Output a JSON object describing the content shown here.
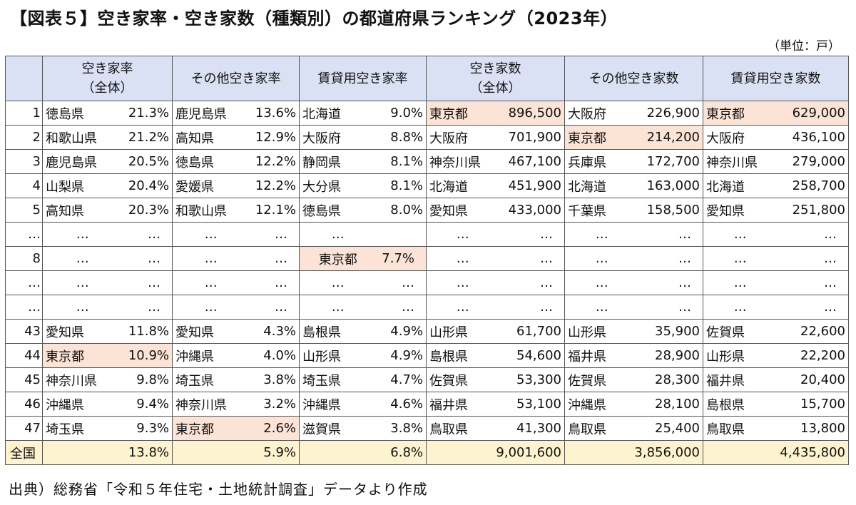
{
  "title": "【図表５】空き家率・空き家数（種類別）の都道府県ランキング（2023年）",
  "unit": "（単位：戸）",
  "source": "出典）総務省「令和５年住宅・土地統計調査」データより作成",
  "headers": [
    [
      "空き家率",
      "（全体）"
    ],
    [
      "その他空き家率"
    ],
    [
      "賃貸用空き家率"
    ],
    [
      "空き家数",
      "（全体）"
    ],
    [
      "その他空き家数"
    ],
    [
      "賃貸用空き家数"
    ]
  ],
  "rows": [
    {
      "rank": "1",
      "cells": [
        [
          "徳島県",
          "21.3%"
        ],
        [
          "鹿児島県",
          "13.6%"
        ],
        [
          "北海道",
          "9.0%"
        ],
        [
          "東京都",
          "896,500"
        ],
        [
          "大阪府",
          "226,900"
        ],
        [
          "東京都",
          "629,000"
        ]
      ],
      "hl": [
        3,
        5
      ]
    },
    {
      "rank": "2",
      "cells": [
        [
          "和歌山県",
          "21.2%"
        ],
        [
          "高知県",
          "12.9%"
        ],
        [
          "大阪府",
          "8.8%"
        ],
        [
          "大阪府",
          "701,900"
        ],
        [
          "東京都",
          "214,200"
        ],
        [
          "大阪府",
          "436,100"
        ]
      ],
      "hl": [
        4
      ]
    },
    {
      "rank": "3",
      "cells": [
        [
          "鹿児島県",
          "20.5%"
        ],
        [
          "徳島県",
          "12.2%"
        ],
        [
          "静岡県",
          "8.1%"
        ],
        [
          "神奈川県",
          "467,100"
        ],
        [
          "兵庫県",
          "172,700"
        ],
        [
          "神奈川県",
          "279,000"
        ]
      ],
      "hl": []
    },
    {
      "rank": "4",
      "cells": [
        [
          "山梨県",
          "20.4%"
        ],
        [
          "愛媛県",
          "12.2%"
        ],
        [
          "大分県",
          "8.1%"
        ],
        [
          "北海道",
          "451,900"
        ],
        [
          "北海道",
          "163,000"
        ],
        [
          "北海道",
          "258,700"
        ]
      ],
      "hl": []
    },
    {
      "rank": "5",
      "cells": [
        [
          "高知県",
          "20.3%"
        ],
        [
          "和歌山県",
          "12.1%"
        ],
        [
          "徳島県",
          "8.0%"
        ],
        [
          "愛知県",
          "433,000"
        ],
        [
          "千葉県",
          "158,500"
        ],
        [
          "愛知県",
          "251,800"
        ]
      ],
      "hl": []
    },
    {
      "rank": "…",
      "cells": [
        [
          "…",
          "…"
        ],
        [
          "…",
          "…"
        ],
        [
          "…",
          ""
        ],
        [
          "…",
          "…"
        ],
        [
          "…",
          "…"
        ],
        [
          "…",
          "…"
        ]
      ],
      "hl": [],
      "gap": true
    },
    {
      "rank": "8",
      "cells": [
        [
          "…",
          "…"
        ],
        [
          "…",
          "…"
        ],
        [
          "東京都",
          "7.7%"
        ],
        [
          "…",
          "…"
        ],
        [
          "…",
          "…"
        ],
        [
          "…",
          "…"
        ]
      ],
      "hl": [
        2
      ],
      "gap": true
    },
    {
      "rank": "…",
      "cells": [
        [
          "…",
          "…"
        ],
        [
          "…",
          "…"
        ],
        [
          "…",
          "…"
        ],
        [
          "…",
          "…"
        ],
        [
          "…",
          "…"
        ],
        [
          "…",
          "…"
        ]
      ],
      "hl": [],
      "gap": true
    },
    {
      "rank": "…",
      "cells": [
        [
          "…",
          "…"
        ],
        [
          "…",
          "…"
        ],
        [
          "…",
          "…"
        ],
        [
          "…",
          "…"
        ],
        [
          "…",
          "…"
        ],
        [
          "…",
          "…"
        ]
      ],
      "hl": [],
      "gap": true
    },
    {
      "rank": "43",
      "cells": [
        [
          "愛知県",
          "11.8%"
        ],
        [
          "愛知県",
          "4.3%"
        ],
        [
          "島根県",
          "4.9%"
        ],
        [
          "山形県",
          "61,700"
        ],
        [
          "山形県",
          "35,900"
        ],
        [
          "佐賀県",
          "22,600"
        ]
      ],
      "hl": []
    },
    {
      "rank": "44",
      "cells": [
        [
          "東京都",
          "10.9%"
        ],
        [
          "沖縄県",
          "4.0%"
        ],
        [
          "山形県",
          "4.9%"
        ],
        [
          "島根県",
          "54,600"
        ],
        [
          "福井県",
          "28,900"
        ],
        [
          "山形県",
          "22,200"
        ]
      ],
      "hl": [
        0
      ]
    },
    {
      "rank": "45",
      "cells": [
        [
          "神奈川県",
          "9.8%"
        ],
        [
          "埼玉県",
          "3.8%"
        ],
        [
          "埼玉県",
          "4.7%"
        ],
        [
          "佐賀県",
          "53,300"
        ],
        [
          "佐賀県",
          "28,300"
        ],
        [
          "福井県",
          "20,400"
        ]
      ],
      "hl": []
    },
    {
      "rank": "46",
      "cells": [
        [
          "沖縄県",
          "9.4%"
        ],
        [
          "神奈川県",
          "3.2%"
        ],
        [
          "沖縄県",
          "4.6%"
        ],
        [
          "福井県",
          "53,100"
        ],
        [
          "沖縄県",
          "28,100"
        ],
        [
          "島根県",
          "15,700"
        ]
      ],
      "hl": []
    },
    {
      "rank": "47",
      "cells": [
        [
          "埼玉県",
          "9.3%"
        ],
        [
          "東京都",
          "2.6%"
        ],
        [
          "滋賀県",
          "3.8%"
        ],
        [
          "鳥取県",
          "41,300"
        ],
        [
          "鳥取県",
          "25,400"
        ],
        [
          "鳥取県",
          "13,800"
        ]
      ],
      "hl": [
        1
      ]
    }
  ],
  "total": {
    "label": "全国",
    "values": [
      "13.8%",
      "5.9%",
      "6.8%",
      "9,001,600",
      "3,856,000",
      "4,435,800"
    ]
  }
}
